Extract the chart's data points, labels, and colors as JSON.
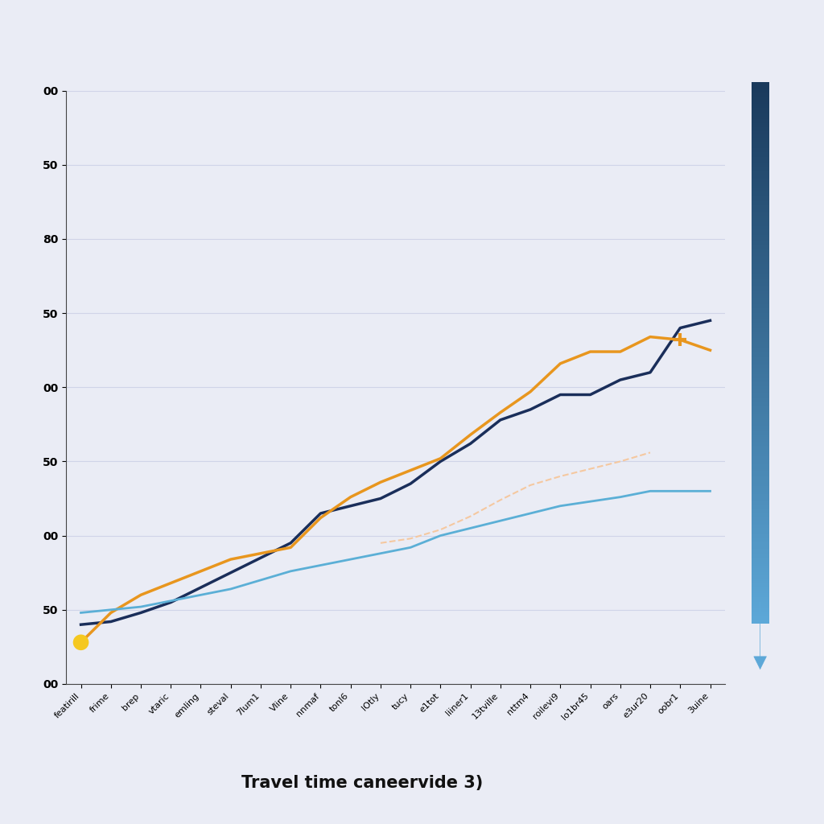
{
  "title": "Travel time caneervide 3)",
  "background_color": "#eaecf5",
  "plot_bg_color": "#eaecf5",
  "categories": [
    "featirill",
    "frime",
    "brep",
    "vtaric",
    "emling",
    "steval",
    "7lum1",
    "Vline",
    "nnmaf",
    "tonl6",
    "lOtly",
    "tucy",
    "e1tot",
    "liiner1",
    "13tville",
    "nttm4",
    "roilevi9",
    "lo1br45",
    "oars",
    "e3ur20",
    "oobr1",
    "3uine"
  ],
  "dark_navy_values": [
    40,
    42,
    48,
    55,
    65,
    75,
    85,
    95,
    115,
    120,
    125,
    135,
    150,
    162,
    178,
    185,
    195,
    195,
    205,
    210,
    240,
    245
  ],
  "orange_values": [
    28,
    48,
    60,
    68,
    76,
    84,
    88,
    92,
    112,
    126,
    136,
    144,
    152,
    168,
    183,
    197,
    216,
    224,
    224,
    234,
    232,
    225
  ],
  "light_blue_values": [
    48,
    50,
    52,
    56,
    60,
    64,
    70,
    76,
    80,
    84,
    88,
    92,
    100,
    105,
    110,
    115,
    120,
    123,
    126,
    130,
    130,
    130
  ],
  "peach_values": [
    null,
    null,
    null,
    null,
    null,
    null,
    null,
    null,
    null,
    null,
    95,
    98,
    104,
    113,
    124,
    134,
    140,
    145,
    150,
    156,
    null,
    null
  ],
  "dark_navy_color": "#1a2e5a",
  "orange_color": "#e8961e",
  "light_blue_color": "#5bafd6",
  "peach_color": "#f5c8a0",
  "start_marker_color": "#f5c820",
  "end_marker_color": "#e8961e",
  "arrow_top_color": "#1a3a5c",
  "arrow_bottom_color": "#5da8d8",
  "grid_color": "#d0d4e8",
  "title_fontsize": 15,
  "tick_fontsize": 10,
  "ylim_min": 0,
  "ylim_max": 400,
  "ytick_positions": [
    400,
    350,
    300,
    250,
    200,
    150,
    100,
    50,
    0
  ],
  "ytick_labels": [
    "00",
    "50",
    "80",
    "50",
    "00",
    "50",
    "00",
    "50",
    "00"
  ]
}
